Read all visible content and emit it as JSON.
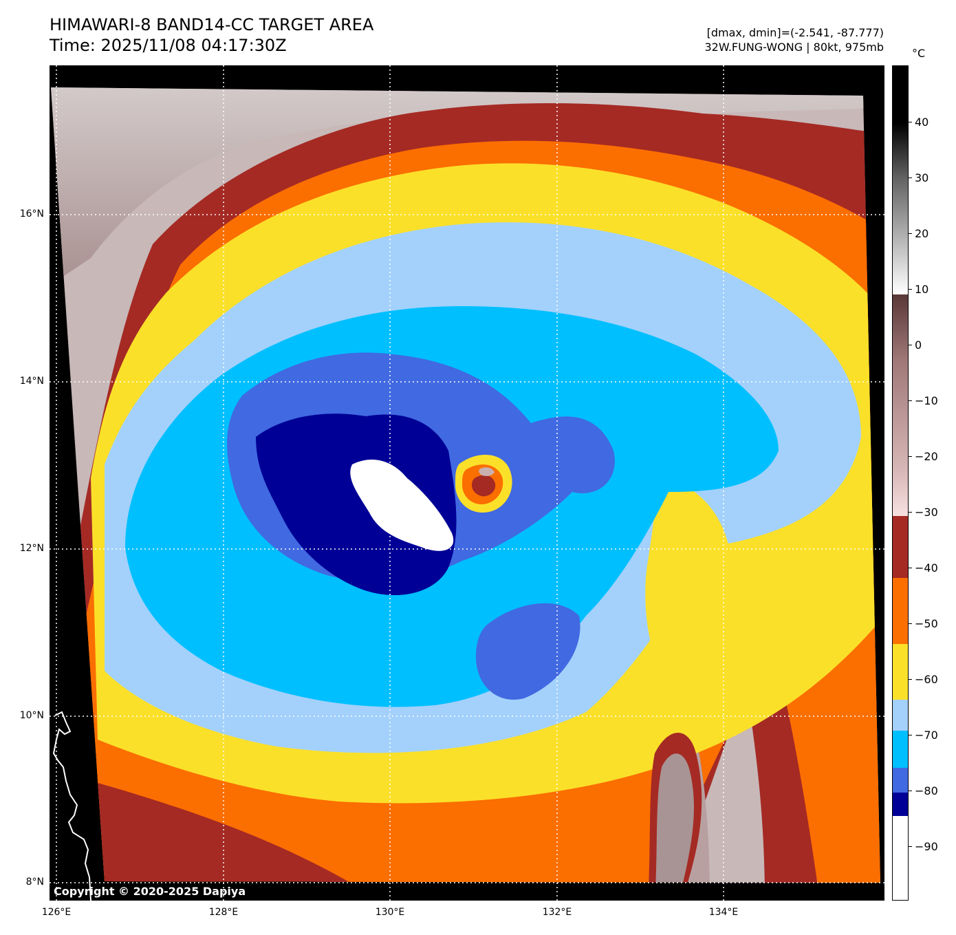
{
  "title": {
    "line1": "HIMAWARI-8 BAND14-CC TARGET AREA",
    "line2": "Time: 2025/11/08 04:17:30Z"
  },
  "info": {
    "line1": "[dmax, dmin]=(-2.541, -87.777)",
    "line2": "32W.FUNG-WONG | 80kt, 975mb"
  },
  "copyright": "Copyright © 2020-2025 Dapiya",
  "map": {
    "lat_labels": [
      "16°N",
      "14°N",
      "12°N",
      "10°N",
      "8°N"
    ],
    "lon_labels": [
      "126°E",
      "128°E",
      "130°E",
      "132°E",
      "134°E"
    ],
    "lat_range": [
      8,
      17.8
    ],
    "lon_range": [
      126,
      136
    ]
  },
  "colorbar": {
    "unit": "°C",
    "labels": [
      "40",
      "30",
      "20",
      "10",
      "0",
      "−10",
      "−20",
      "−30",
      "−40",
      "−50",
      "−60",
      "−70",
      "−80",
      "−90"
    ],
    "colors": {
      "white": "#ffffff",
      "navy": "#000096",
      "royal": "#4169e1",
      "cyan": "#00bfff",
      "lightblue": "#a3d1fb",
      "yellow": "#fbe02a",
      "orange": "#fb6e00",
      "red": "#a52a24"
    }
  }
}
